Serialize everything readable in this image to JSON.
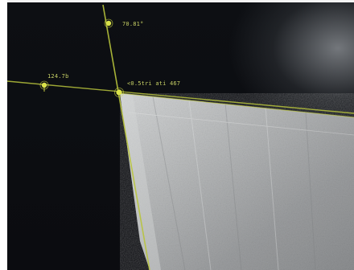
{
  "viewer": {
    "overlay_color": "#b8c43c",
    "marker_color": "#d9e24a",
    "sample_color": "#b9bbbc",
    "background_color": "#0b0c10"
  },
  "measurements": {
    "angle_upper": "70.81°",
    "angle_left": "124.7b",
    "vertex_readout": "<0.5tri ati 467"
  }
}
